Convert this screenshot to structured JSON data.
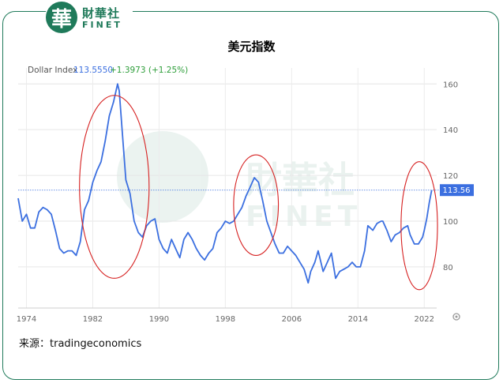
{
  "brand": {
    "mark": "華",
    "name_cn": "財華社",
    "name_en": "FINET"
  },
  "title": "美元指数",
  "source": "来源：tradingeconomics",
  "chart_data": {
    "type": "line",
    "legend": {
      "name": "Dollar Index",
      "value": "113.5550",
      "change": "+1.3973 (+1.25%)"
    },
    "last_value_label": "113.56",
    "x_ticks": [
      "1974",
      "1982",
      "1990",
      "1998",
      "2006",
      "2014",
      "2022"
    ],
    "y_ticks": [
      "160",
      "140",
      "120",
      "100",
      "80"
    ],
    "xlim": [
      1973,
      2023.5
    ],
    "ylim": [
      62,
      167
    ],
    "reference_line": 113.56,
    "series": [
      {
        "color": "#3b6fe0",
        "x": [
          1973.0,
          1973.5,
          1974.0,
          1974.5,
          1975.0,
          1975.5,
          1976.0,
          1976.5,
          1977.0,
          1977.5,
          1978.0,
          1978.5,
          1979.0,
          1979.5,
          1980.0,
          1980.5,
          1981.0,
          1981.5,
          1982.0,
          1982.5,
          1983.0,
          1983.5,
          1984.0,
          1984.5,
          1985.0,
          1985.2,
          1985.5,
          1986.0,
          1986.5,
          1987.0,
          1987.5,
          1988.0,
          1988.5,
          1989.0,
          1989.5,
          1990.0,
          1990.5,
          1991.0,
          1991.5,
          1992.0,
          1992.5,
          1993.0,
          1993.5,
          1994.0,
          1994.5,
          1995.0,
          1995.5,
          1996.0,
          1996.5,
          1997.0,
          1997.5,
          1998.0,
          1998.5,
          1999.0,
          1999.5,
          2000.0,
          2000.5,
          2001.0,
          2001.5,
          2002.0,
          2002.5,
          2003.0,
          2003.5,
          2004.0,
          2004.5,
          2005.0,
          2005.5,
          2006.0,
          2006.5,
          2007.0,
          2007.5,
          2008.0,
          2008.3,
          2008.8,
          2009.2,
          2009.8,
          2010.3,
          2010.8,
          2011.3,
          2011.8,
          2012.3,
          2012.8,
          2013.3,
          2013.8,
          2014.3,
          2014.8,
          2015.2,
          2015.8,
          2016.3,
          2016.8,
          2017.0,
          2017.5,
          2018.0,
          2018.5,
          2019.0,
          2019.5,
          2020.0,
          2020.3,
          2020.8,
          2021.3,
          2021.8,
          2022.0,
          2022.3,
          2022.6,
          2022.9
        ],
        "y": [
          110,
          100,
          103,
          97,
          97,
          104,
          106,
          105,
          103,
          96,
          88,
          86,
          87,
          87,
          85,
          91,
          105,
          109,
          117,
          122,
          126,
          135,
          146,
          152,
          160,
          157,
          142,
          118,
          112,
          100,
          95,
          93,
          98,
          100,
          101,
          92,
          88,
          86,
          92,
          88,
          84,
          92,
          95,
          92,
          88,
          85,
          83,
          86,
          88,
          95,
          97,
          100,
          99,
          100,
          103,
          106,
          111,
          115,
          119,
          117,
          109,
          100,
          95,
          90,
          86,
          86,
          89,
          87,
          85,
          82,
          79,
          73,
          78,
          82,
          87,
          78,
          82,
          86,
          75,
          78,
          79,
          80,
          82,
          80,
          80,
          87,
          98,
          96,
          99,
          100,
          100,
          96,
          91,
          94,
          95,
          97,
          98,
          94,
          90,
          90,
          93,
          96,
          101,
          108,
          113.56
        ]
      }
    ],
    "annotations": [
      {
        "type": "ellipse",
        "color": "#d62020",
        "cx": 1984.6,
        "cy": 115,
        "rx_years": 4.2,
        "ry": 40
      },
      {
        "type": "ellipse",
        "color": "#d62020",
        "cx": 2001.7,
        "cy": 107,
        "rx_years": 2.7,
        "ry": 22
      },
      {
        "type": "ellipse",
        "color": "#d62020",
        "cx": 2021.4,
        "cy": 98,
        "rx_years": 2.2,
        "ry": 28
      }
    ],
    "grid": true
  }
}
